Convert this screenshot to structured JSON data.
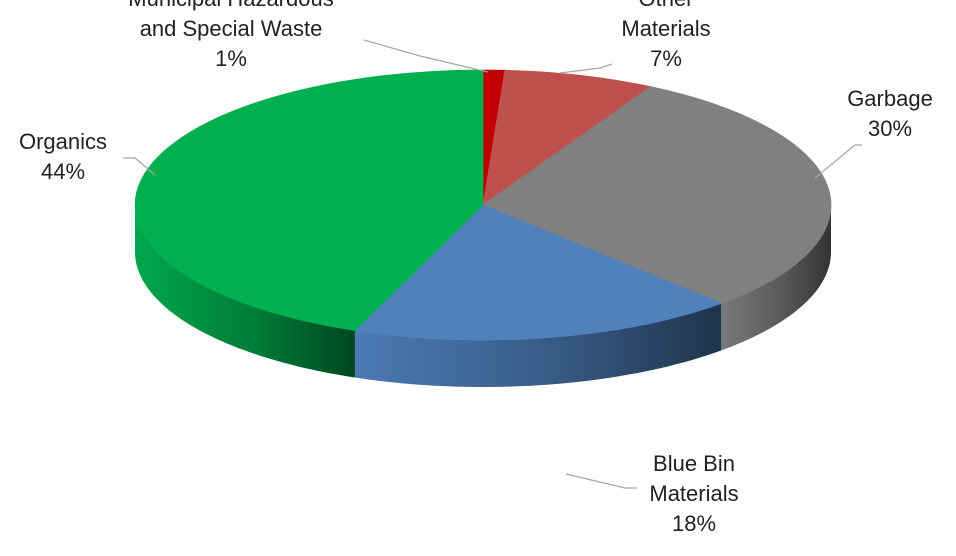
{
  "chart_data": {
    "type": "pie",
    "style": "3d",
    "slices": [
      {
        "name": "Municipal Hazardous and Special Waste",
        "value": 1,
        "label_lines": [
          "Municipal Hazardous",
          "and Special Waste"
        ],
        "pct_label": "1%",
        "color": "#c00000"
      },
      {
        "name": "Other Materials",
        "value": 7,
        "label_lines": [
          "Other",
          "Materials"
        ],
        "pct_label": "7%",
        "color": "#c0504d"
      },
      {
        "name": "Garbage",
        "value": 30,
        "label_lines": [
          "Garbage"
        ],
        "pct_label": "30%",
        "color": "#808080"
      },
      {
        "name": "Blue Bin Materials",
        "value": 18,
        "label_lines": [
          "Blue Bin",
          "Materials"
        ],
        "pct_label": "18%",
        "color": "#4f81bd"
      },
      {
        "name": "Organics",
        "value": 44,
        "label_lines": [
          "Organics"
        ],
        "pct_label": "44%",
        "color": "#00b050"
      }
    ]
  }
}
